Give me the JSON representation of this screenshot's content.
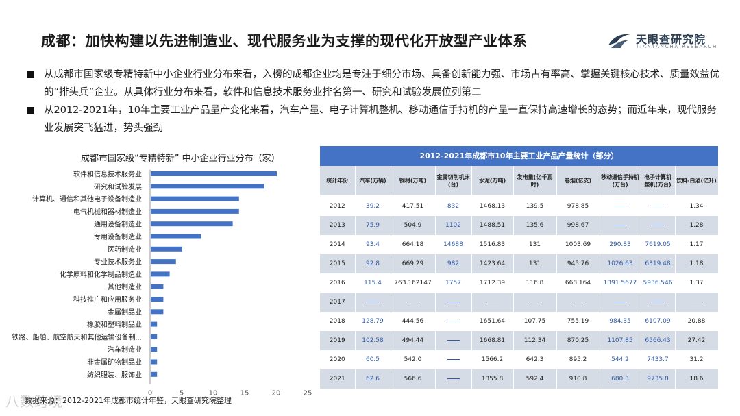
{
  "title": "成都：加快构建以先进制造业、现代服务业为支撑的现代化开放型产业体系",
  "logo": {
    "name": "天眼查研究院",
    "sub": "TIANYANCHA RESEARCH"
  },
  "bullets": [
    "从成都市国家级专精特新中小企业行业分布来看，入榜的成都企业均是专注于细分市场、具备创新能力强、市场占有率高、掌握关键核心技术、质量效益优的“排头兵”企业。从具体行业分布来看，软件和信息技术服务业排名第一、研究和试验发展位列第二",
    "从2012-2021年，10年主要工业产品量产变化来看，汽车产量、电子计算机整机、移动通信手持机的产量一直保持高速增长的态势；而近年来，现代服务业发展突飞猛进，势头强劲"
  ],
  "chart_data": {
    "type": "bar",
    "orientation": "horizontal",
    "title": "成都市国家级“专精特新” 中小企业行业分布（家）",
    "categories": [
      "软件和信息技术服务业",
      "研究和试验发展",
      "计算机、通信和其他电子设备制造业",
      "电气机械和器材制造业",
      "通用设备制造业",
      "专用设备制造业",
      "医药制造业",
      "专业技术服务业",
      "化学原料和化学制品制造业",
      "其他制造业",
      "科技推广和应用服务业",
      "金属制品业",
      "橡胶和塑料制品业",
      "铁路、船舶、航空航天和其他运输设备制...",
      "汽车制造业",
      "非金属矿物制品业",
      "纺织服装、服饰业"
    ],
    "values": [
      20,
      18,
      14,
      14,
      13,
      8,
      5,
      4,
      3,
      2,
      2,
      2,
      1,
      1,
      1,
      1,
      1
    ],
    "xlim": [
      0,
      25
    ],
    "xticks": [
      0,
      5,
      10,
      15,
      20,
      25
    ],
    "bar_color": "#4472c4"
  },
  "table": {
    "title": "2012-2021年成都市10年主要工业产品产量统计（部分）",
    "headers": [
      "统计年份",
      "汽车(万辆)",
      "钢材(万吨)",
      "金属切削机床(台)",
      "水泥(万吨)",
      "发电量(亿千瓦时)",
      "卷烟(亿支)",
      "移动通信手持机(万台)",
      "电子计算机整机(万台)",
      "饮料-白酒(亿升)"
    ],
    "rows": [
      [
        "2012",
        "39.2",
        "417.51",
        "832",
        "1468.13",
        "139.5",
        "978.85",
        "——",
        "——",
        "1.34"
      ],
      [
        "2013",
        "75.9",
        "504.9",
        "1102",
        "1488.51",
        "135.6",
        "998.67",
        "——",
        "——",
        "1.28"
      ],
      [
        "2014",
        "93.4",
        "664.18",
        "14688",
        "1516.83",
        "131",
        "1003.69",
        "290.83",
        "7619.05",
        "1.17"
      ],
      [
        "2015",
        "92.8",
        "669.29",
        "982",
        "1423.64",
        "131",
        "945.76",
        "1026.63",
        "6319.48",
        "1.18"
      ],
      [
        "2016",
        "115.4",
        "763.162147",
        "1757",
        "1712.39",
        "116.8",
        "668.164",
        "1391.5677",
        "5936.546",
        "1.37"
      ],
      [
        "2017",
        "——",
        "——",
        "——",
        "——",
        "——",
        "——",
        "——",
        "——",
        "——"
      ],
      [
        "2018",
        "128.79",
        "444.56",
        "——",
        "1651.64",
        "107.75",
        "755.19",
        "984.35",
        "6107.09",
        "20.88"
      ],
      [
        "2019",
        "102.58",
        "494.44",
        "——",
        "1668.81",
        "112.34",
        "870.25",
        "1107.85",
        "6566.43",
        "27.42"
      ],
      [
        "2020",
        "60.5",
        "542.0",
        "——",
        "1566.2",
        "642.3",
        "895.2",
        "544.2",
        "7433.7",
        "31.2"
      ],
      [
        "2021",
        "62.6",
        "566.6",
        "——",
        "1355.8",
        "592.4",
        "910.8",
        "680.3",
        "9735.8",
        "18.6"
      ]
    ],
    "blue_columns": [
      1,
      3,
      7,
      8
    ]
  },
  "source": "数据来源：2012-2021年成都市统计年鉴，天眼查研究院整理",
  "watermark": "八数跨境"
}
